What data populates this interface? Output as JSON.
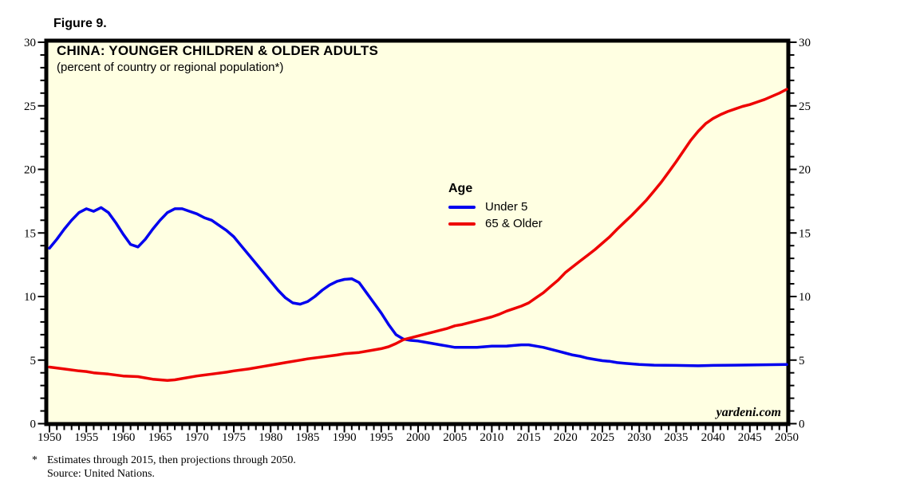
{
  "figure_label": "Figure 9.",
  "chart": {
    "title": "CHINA: YOUNGER CHILDREN & OLDER ADULTS",
    "subtitle": "(percent of country or regional population*)",
    "watermark": "yardeni.com",
    "legend": {
      "title": "Age",
      "items": [
        {
          "label": "Under 5"
        },
        {
          "label": "65 & Older"
        }
      ]
    }
  },
  "footnote": {
    "marker": "*",
    "line1": "Estimates through 2015, then projections through 2050.",
    "line2": "Source: United Nations."
  },
  "chart_data": {
    "type": "line",
    "title": "CHINA: YOUNGER CHILDREN & OLDER ADULTS",
    "subtitle": "(percent of country or regional population*)",
    "xlabel": "",
    "ylabel": "percent of country or regional population",
    "xlim": [
      1950,
      2050
    ],
    "ylim": [
      0,
      30
    ],
    "x_tick_major": 5,
    "x_tick_minor": 1,
    "y_tick_major": 5,
    "y_tick_minor": 1,
    "x_tick_labels": [
      1950,
      1955,
      1960,
      1965,
      1970,
      1975,
      1980,
      1985,
      1990,
      1995,
      2000,
      2005,
      2010,
      2015,
      2020,
      2025,
      2030,
      2035,
      2040,
      2045,
      2050
    ],
    "y_tick_labels": [
      0,
      5,
      10,
      15,
      20,
      25,
      30
    ],
    "grid": false,
    "legend_title": "Age",
    "legend_position": "inside-center",
    "plot_background": "#FFFFE2",
    "border_color": "#000000",
    "series": [
      {
        "name": "Under 5",
        "color": "#0000EE",
        "points": [
          [
            1950,
            13.8
          ],
          [
            1951,
            14.5
          ],
          [
            1952,
            15.3
          ],
          [
            1953,
            16.0
          ],
          [
            1954,
            16.6
          ],
          [
            1955,
            16.9
          ],
          [
            1956,
            16.7
          ],
          [
            1957,
            17.0
          ],
          [
            1958,
            16.6
          ],
          [
            1959,
            15.8
          ],
          [
            1960,
            14.9
          ],
          [
            1961,
            14.1
          ],
          [
            1962,
            13.9
          ],
          [
            1963,
            14.5
          ],
          [
            1964,
            15.3
          ],
          [
            1965,
            16.0
          ],
          [
            1966,
            16.6
          ],
          [
            1967,
            16.9
          ],
          [
            1968,
            16.9
          ],
          [
            1969,
            16.7
          ],
          [
            1970,
            16.5
          ],
          [
            1971,
            16.2
          ],
          [
            1972,
            16.0
          ],
          [
            1973,
            15.6
          ],
          [
            1974,
            15.2
          ],
          [
            1975,
            14.7
          ],
          [
            1976,
            14.0
          ],
          [
            1977,
            13.3
          ],
          [
            1978,
            12.6
          ],
          [
            1979,
            11.9
          ],
          [
            1980,
            11.2
          ],
          [
            1981,
            10.5
          ],
          [
            1982,
            9.9
          ],
          [
            1983,
            9.5
          ],
          [
            1984,
            9.4
          ],
          [
            1985,
            9.6
          ],
          [
            1986,
            10.0
          ],
          [
            1987,
            10.5
          ],
          [
            1988,
            10.9
          ],
          [
            1989,
            11.2
          ],
          [
            1990,
            11.35
          ],
          [
            1991,
            11.4
          ],
          [
            1992,
            11.1
          ],
          [
            1993,
            10.3
          ],
          [
            1994,
            9.5
          ],
          [
            1995,
            8.7
          ],
          [
            1996,
            7.8
          ],
          [
            1997,
            7.0
          ],
          [
            1998,
            6.65
          ],
          [
            1999,
            6.55
          ],
          [
            2000,
            6.5
          ],
          [
            2001,
            6.4
          ],
          [
            2002,
            6.3
          ],
          [
            2003,
            6.2
          ],
          [
            2004,
            6.1
          ],
          [
            2005,
            6.0
          ],
          [
            2006,
            6.0
          ],
          [
            2007,
            6.0
          ],
          [
            2008,
            6.0
          ],
          [
            2009,
            6.05
          ],
          [
            2010,
            6.1
          ],
          [
            2011,
            6.1
          ],
          [
            2012,
            6.1
          ],
          [
            2013,
            6.15
          ],
          [
            2014,
            6.2
          ],
          [
            2015,
            6.2
          ],
          [
            2016,
            6.1
          ],
          [
            2017,
            6.0
          ],
          [
            2018,
            5.85
          ],
          [
            2019,
            5.7
          ],
          [
            2020,
            5.55
          ],
          [
            2021,
            5.4
          ],
          [
            2022,
            5.3
          ],
          [
            2023,
            5.15
          ],
          [
            2024,
            5.05
          ],
          [
            2025,
            4.95
          ],
          [
            2026,
            4.9
          ],
          [
            2027,
            4.8
          ],
          [
            2028,
            4.75
          ],
          [
            2029,
            4.7
          ],
          [
            2030,
            4.65
          ],
          [
            2032,
            4.6
          ],
          [
            2035,
            4.58
          ],
          [
            2038,
            4.55
          ],
          [
            2040,
            4.58
          ],
          [
            2043,
            4.6
          ],
          [
            2046,
            4.62
          ],
          [
            2050,
            4.65
          ]
        ]
      },
      {
        "name": "65 & Older",
        "color": "#EE0000",
        "points": [
          [
            1950,
            4.45
          ],
          [
            1952,
            4.3
          ],
          [
            1954,
            4.15
          ],
          [
            1955,
            4.1
          ],
          [
            1956,
            4.0
          ],
          [
            1958,
            3.9
          ],
          [
            1960,
            3.75
          ],
          [
            1962,
            3.7
          ],
          [
            1963,
            3.6
          ],
          [
            1964,
            3.5
          ],
          [
            1965,
            3.45
          ],
          [
            1966,
            3.4
          ],
          [
            1967,
            3.45
          ],
          [
            1968,
            3.55
          ],
          [
            1970,
            3.75
          ],
          [
            1972,
            3.9
          ],
          [
            1974,
            4.05
          ],
          [
            1975,
            4.15
          ],
          [
            1977,
            4.3
          ],
          [
            1979,
            4.5
          ],
          [
            1980,
            4.6
          ],
          [
            1982,
            4.8
          ],
          [
            1984,
            5.0
          ],
          [
            1985,
            5.1
          ],
          [
            1987,
            5.25
          ],
          [
            1989,
            5.4
          ],
          [
            1990,
            5.5
          ],
          [
            1992,
            5.6
          ],
          [
            1994,
            5.8
          ],
          [
            1995,
            5.9
          ],
          [
            1996,
            6.05
          ],
          [
            1997,
            6.3
          ],
          [
            1998,
            6.6
          ],
          [
            1999,
            6.75
          ],
          [
            2000,
            6.9
          ],
          [
            2001,
            7.05
          ],
          [
            2002,
            7.2
          ],
          [
            2003,
            7.35
          ],
          [
            2004,
            7.5
          ],
          [
            2005,
            7.7
          ],
          [
            2006,
            7.8
          ],
          [
            2007,
            7.95
          ],
          [
            2008,
            8.1
          ],
          [
            2009,
            8.25
          ],
          [
            2010,
            8.4
          ],
          [
            2011,
            8.6
          ],
          [
            2012,
            8.85
          ],
          [
            2013,
            9.05
          ],
          [
            2014,
            9.25
          ],
          [
            2015,
            9.5
          ],
          [
            2016,
            9.9
          ],
          [
            2017,
            10.3
          ],
          [
            2018,
            10.8
          ],
          [
            2019,
            11.3
          ],
          [
            2020,
            11.9
          ],
          [
            2021,
            12.35
          ],
          [
            2022,
            12.8
          ],
          [
            2023,
            13.25
          ],
          [
            2024,
            13.7
          ],
          [
            2025,
            14.2
          ],
          [
            2026,
            14.7
          ],
          [
            2027,
            15.3
          ],
          [
            2028,
            15.85
          ],
          [
            2029,
            16.4
          ],
          [
            2030,
            17.0
          ],
          [
            2031,
            17.6
          ],
          [
            2032,
            18.3
          ],
          [
            2033,
            19.0
          ],
          [
            2034,
            19.8
          ],
          [
            2035,
            20.6
          ],
          [
            2036,
            21.45
          ],
          [
            2037,
            22.3
          ],
          [
            2038,
            23.0
          ],
          [
            2039,
            23.6
          ],
          [
            2040,
            24.0
          ],
          [
            2041,
            24.3
          ],
          [
            2042,
            24.55
          ],
          [
            2043,
            24.75
          ],
          [
            2044,
            24.95
          ],
          [
            2045,
            25.1
          ],
          [
            2046,
            25.3
          ],
          [
            2047,
            25.5
          ],
          [
            2048,
            25.75
          ],
          [
            2049,
            26.0
          ],
          [
            2050,
            26.3
          ]
        ]
      }
    ]
  }
}
